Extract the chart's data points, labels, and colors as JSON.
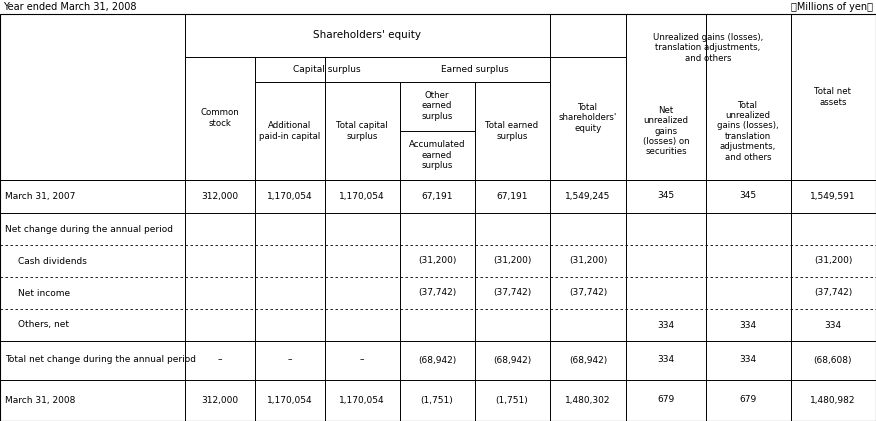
{
  "top_left_label": "Year ended March 31, 2008",
  "top_right_label": "（Millions of yen）",
  "shareholders_equity_label": "Shareholders' equity",
  "unrealized_label": "Unrealized gains (losses),\ntranslation adjustments,\nand others",
  "capital_surplus_label": "Capital surplus",
  "earned_surplus_label": "Earned surplus",
  "col_headers": [
    "Common\nstock",
    "Additional\npaid-in capital",
    "Total capital\nsurplus",
    "Other\nearned\nsurplus",
    "Accumulated\nearned\nsurplus",
    "Total earned\nsurplus",
    "Total\nshareholders'\nequity",
    "Net\nunrealized\ngains\n(losses) on\nsecurities",
    "Total\nunrealized\ngains (losses),\ntranslation\nadjustments,\nand others",
    "Total net\nassets"
  ],
  "rows": [
    {
      "label": "March 31, 2007",
      "values": [
        "312,000",
        "1,170,054",
        "1,170,054",
        "67,191",
        "67,191",
        "1,549,245",
        "345",
        "345",
        "1,549,591"
      ],
      "indent": false,
      "dashed_top": false,
      "solid_top": true
    },
    {
      "label": "Net change during the annual period",
      "values": [
        "",
        "",
        "",
        "",
        "",
        "",
        "",
        "",
        ""
      ],
      "indent": false,
      "dashed_top": false,
      "solid_top": true
    },
    {
      "label": "Cash dividends",
      "values": [
        "",
        "",
        "",
        "(31,200)",
        "(31,200)",
        "(31,200)",
        "",
        "",
        "(31,200)"
      ],
      "indent": true,
      "dashed_top": true,
      "solid_top": false
    },
    {
      "label": "Net income",
      "values": [
        "",
        "",
        "",
        "(37,742)",
        "(37,742)",
        "(37,742)",
        "",
        "",
        "(37,742)"
      ],
      "indent": true,
      "dashed_top": true,
      "solid_top": false
    },
    {
      "label": "Others, net",
      "values": [
        "",
        "",
        "",
        "",
        "",
        "",
        "334",
        "334",
        "334"
      ],
      "indent": true,
      "dashed_top": true,
      "solid_top": false
    },
    {
      "label": "Total net change during the annual period",
      "values": [
        "–",
        "–",
        "–",
        "(68,942)",
        "(68,942)",
        "(68,942)",
        "334",
        "334",
        "(68,608)"
      ],
      "indent": false,
      "dashed_top": false,
      "solid_top": true
    },
    {
      "label": "March 31, 2008",
      "values": [
        "312,000",
        "1,170,054",
        "1,170,054",
        "(1,751)",
        "(1,751)",
        "1,480,302",
        "679",
        "679",
        "1,480,982"
      ],
      "indent": false,
      "dashed_top": false,
      "solid_top": true
    }
  ],
  "bg_color": "#ffffff",
  "line_color": "#000000",
  "text_color": "#000000"
}
